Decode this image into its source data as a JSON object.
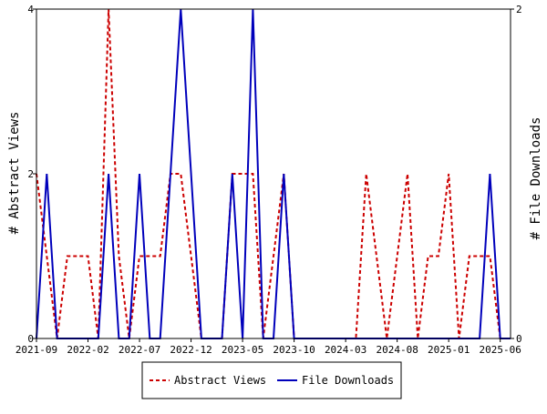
{
  "chart_data": {
    "type": "line",
    "y_left_label": "# Abstract Views",
    "y_right_label": "# File Downloads",
    "y_left_lim": [
      0,
      4
    ],
    "y_left_ticks": [
      "0",
      "2",
      "4"
    ],
    "y_right_lim": [
      0,
      2
    ],
    "y_right_ticks": [
      "0",
      "2"
    ],
    "x_tick_labels": [
      "2021-09",
      "2022-02",
      "2022-07",
      "2022-12",
      "2023-05",
      "2023-10",
      "2024-03",
      "2024-08",
      "2025-01",
      "2025-06"
    ],
    "legend_position": "bottom",
    "series": [
      {
        "name": "Abstract Views",
        "axis": "left",
        "color": "#cc0000",
        "style": "dashed",
        "values": [
          2,
          1,
          0,
          1,
          1,
          1,
          0,
          4,
          1,
          0,
          1,
          1,
          1,
          2,
          2,
          1,
          0,
          0,
          0,
          2,
          2,
          2,
          0,
          1,
          2,
          0,
          0,
          0,
          0,
          0,
          0,
          0,
          2,
          1,
          0,
          1,
          2,
          0,
          1,
          1,
          2,
          0,
          1,
          1,
          1,
          0,
          0
        ]
      },
      {
        "name": "File Downloads",
        "axis": "right",
        "color": "#0000bb",
        "style": "solid",
        "values": [
          0,
          1,
          0,
          0,
          0,
          0,
          0,
          1,
          0,
          0,
          1,
          0,
          0,
          1,
          2,
          1,
          0,
          0,
          0,
          1,
          0,
          2,
          0,
          0,
          1,
          0,
          0,
          0,
          0,
          0,
          0,
          0,
          0,
          0,
          0,
          0,
          0,
          0,
          0,
          0,
          0,
          0,
          0,
          0,
          1,
          0,
          0
        ]
      }
    ]
  }
}
